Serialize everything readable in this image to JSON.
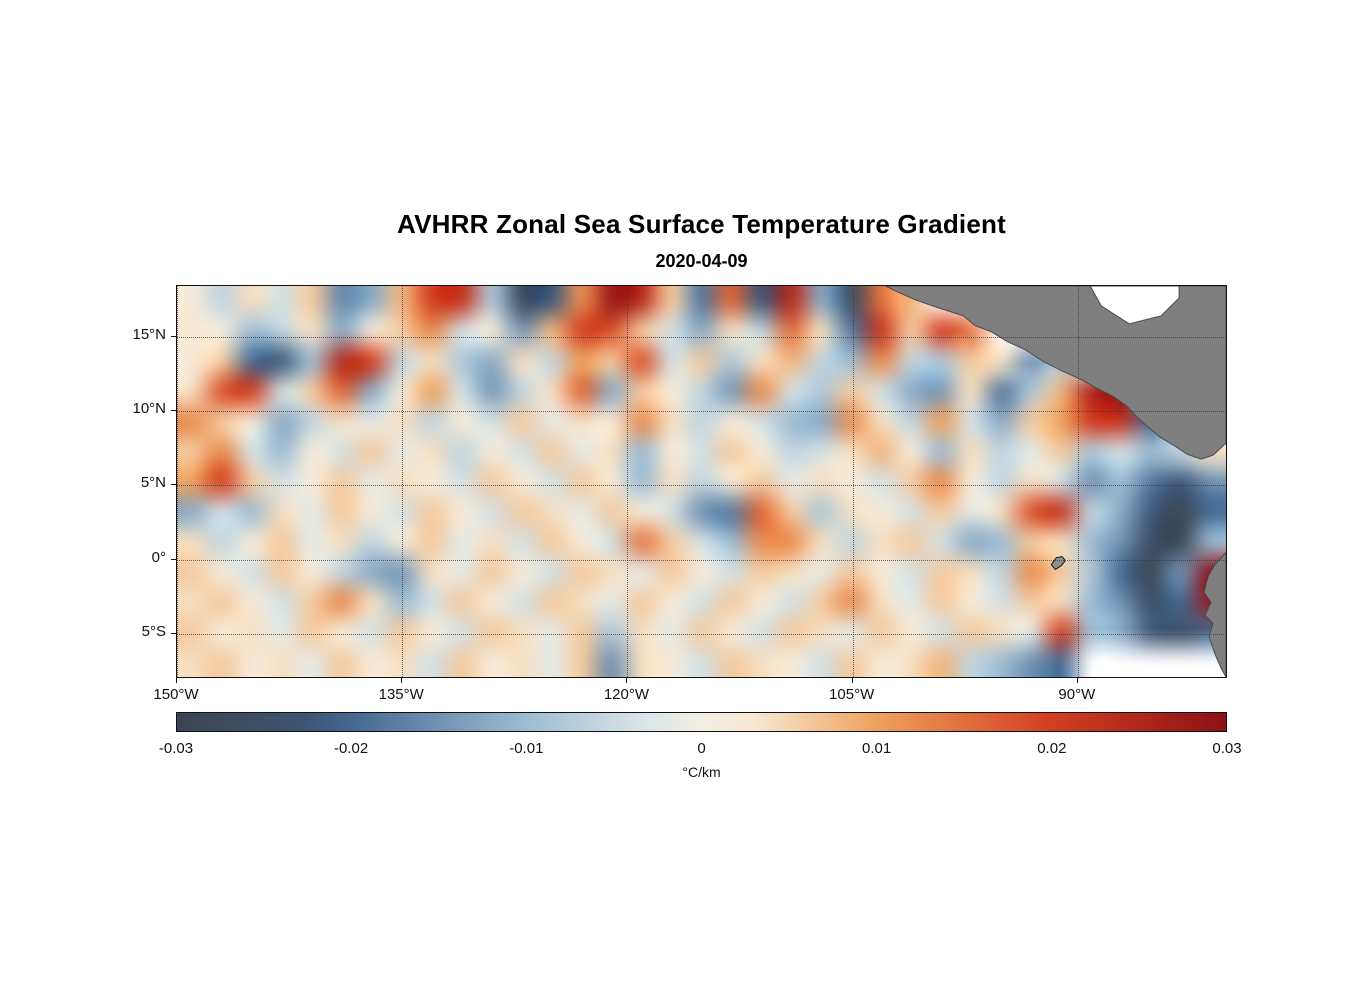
{
  "title": "AVHRR Zonal Sea Surface Temperature Gradient",
  "date": "2020-04-09",
  "axes": {
    "x_tick_labels": [
      "150°W",
      "135°W",
      "120°W",
      "105°W",
      "90°W"
    ],
    "x_tick_lons": [
      -150,
      -135,
      -120,
      -105,
      -90
    ],
    "y_tick_labels": [
      "15°N",
      "10°N",
      "5°N",
      "0°",
      "5°S"
    ],
    "y_tick_lats": [
      15,
      10,
      5,
      0,
      -5
    ],
    "lon_range": [
      -150,
      -80
    ],
    "lat_range": [
      -8,
      18.4
    ],
    "grid_style": "dotted"
  },
  "colorbar": {
    "min": -0.03,
    "max": 0.03,
    "tick_labels": [
      "-0.03",
      "-0.02",
      "-0.01",
      "0",
      "0.01",
      "0.02",
      "0.03"
    ],
    "tick_values": [
      -0.03,
      -0.02,
      -0.01,
      0,
      0.01,
      0.02,
      0.03
    ],
    "label": "°C/km",
    "stops": [
      {
        "t": 0.0,
        "color": "#3b4550"
      },
      {
        "t": 0.12,
        "color": "#3d5472"
      },
      {
        "t": 0.1667,
        "color": "#456890"
      },
      {
        "t": 0.3333,
        "color": "#9dbcd3"
      },
      {
        "t": 0.45,
        "color": "#dde7e8"
      },
      {
        "t": 0.5,
        "color": "#f3efe5"
      },
      {
        "t": 0.55,
        "color": "#f7e9d2"
      },
      {
        "t": 0.6667,
        "color": "#efa15c"
      },
      {
        "t": 0.8333,
        "color": "#d23e20"
      },
      {
        "t": 1.0,
        "color": "#8c1217"
      }
    ]
  },
  "chart_data": {
    "type": "heatmap",
    "title": "AVHRR Zonal Sea Surface Temperature Gradient",
    "subtitle": "2020-04-09",
    "units": "°C/km",
    "value_range": [
      -0.03,
      0.03
    ],
    "lon_centers_start": -149,
    "lon_step": 2,
    "n_cols": 35,
    "lat_centers_start": 17,
    "lat_step": -2,
    "n_rows": 13,
    "note": "approximate zonal SST gradient field; null = land / no data",
    "values": [
      [
        0.002,
        -0.006,
        0.004,
        -0.004,
        0.006,
        -0.016,
        -0.012,
        0.008,
        0.02,
        0.022,
        -0.008,
        -0.026,
        -0.022,
        0.012,
        0.028,
        0.024,
        0.006,
        -0.018,
        0.016,
        -0.022,
        0.024,
        -0.012,
        -0.025,
        0.015,
        0.008,
        null,
        null,
        null,
        null,
        null,
        null,
        null,
        null,
        null,
        null
      ],
      [
        0.003,
        0.001,
        -0.01,
        -0.006,
        0.004,
        -0.012,
        0.002,
        0.006,
        0.012,
        -0.004,
        0.002,
        -0.014,
        0.008,
        0.02,
        0.018,
        0.006,
        -0.004,
        -0.012,
        0.004,
        -0.006,
        0.015,
        0.004,
        -0.018,
        0.022,
        0.006,
        0.02,
        0.014,
        null,
        null,
        null,
        null,
        null,
        null,
        null,
        null
      ],
      [
        0.002,
        0.006,
        -0.02,
        -0.022,
        -0.01,
        0.024,
        0.02,
        -0.006,
        0.004,
        -0.008,
        -0.012,
        0.004,
        -0.006,
        0.01,
        0.006,
        0.018,
        -0.004,
        0.006,
        -0.008,
        0.004,
        0.008,
        -0.006,
        -0.01,
        0.012,
        -0.006,
        -0.008,
        0.006,
        0.004,
        -0.015,
        -0.008,
        null,
        null,
        null,
        null,
        null
      ],
      [
        0.004,
        0.018,
        0.02,
        -0.004,
        0.006,
        0.016,
        -0.012,
        0.002,
        0.01,
        -0.004,
        -0.014,
        -0.006,
        0.004,
        0.016,
        -0.012,
        0.006,
        0.002,
        -0.006,
        -0.014,
        0.012,
        -0.004,
        -0.008,
        0.006,
        -0.004,
        -0.012,
        -0.014,
        0.004,
        -0.018,
        -0.008,
        0.008,
        0.026,
        0.03,
        null,
        null,
        null
      ],
      [
        0.012,
        0.006,
        0.002,
        -0.012,
        -0.006,
        0.004,
        -0.002,
        0.004,
        -0.006,
        0.002,
        -0.004,
        0.006,
        -0.002,
        0.004,
        0.002,
        0.012,
        0.004,
        -0.006,
        0.002,
        -0.004,
        -0.01,
        -0.012,
        0.012,
        0.004,
        -0.006,
        0.01,
        -0.004,
        -0.012,
        0.006,
        0.01,
        0.02,
        0.022,
        -0.02,
        null,
        null
      ],
      [
        0.006,
        0.012,
        -0.004,
        -0.01,
        0.002,
        -0.004,
        0.006,
        -0.002,
        0.004,
        -0.006,
        0.002,
        -0.004,
        0.006,
        -0.002,
        0.004,
        -0.01,
        0.002,
        -0.004,
        0.006,
        0.002,
        -0.006,
        -0.004,
        0.004,
        0.008,
        0.002,
        -0.01,
        0.004,
        -0.006,
        -0.002,
        0.006,
        -0.008,
        -0.004,
        -0.01,
        -0.006,
        0.004
      ],
      [
        0.01,
        0.02,
        0.006,
        -0.004,
        0.002,
        0.006,
        -0.002,
        0.004,
        0.002,
        -0.004,
        0.006,
        0.002,
        -0.004,
        0.006,
        0.002,
        -0.01,
        0.004,
        -0.006,
        0.002,
        0.006,
        -0.002,
        0.004,
        0.002,
        -0.004,
        0.006,
        0.012,
        0.002,
        -0.006,
        0.004,
        -0.004,
        -0.015,
        -0.01,
        -0.018,
        -0.022,
        -0.015
      ],
      [
        -0.012,
        -0.004,
        -0.01,
        0.004,
        -0.002,
        0.006,
        0.002,
        -0.004,
        0.006,
        0.002,
        -0.004,
        0.006,
        0.004,
        -0.002,
        0.006,
        0.002,
        -0.004,
        -0.015,
        -0.018,
        0.016,
        0.006,
        -0.008,
        0.004,
        0.002,
        -0.004,
        0.006,
        -0.002,
        0.004,
        0.018,
        0.022,
        -0.006,
        -0.012,
        -0.022,
        -0.028,
        -0.02
      ],
      [
        0.004,
        -0.006,
        0.002,
        0.006,
        -0.002,
        0.004,
        -0.006,
        0.002,
        0.006,
        -0.002,
        0.004,
        -0.004,
        0.006,
        0.002,
        -0.004,
        0.014,
        0.006,
        -0.004,
        -0.01,
        0.012,
        0.012,
        0.004,
        -0.006,
        0.004,
        0.006,
        -0.004,
        -0.012,
        -0.01,
        0.006,
        0.004,
        -0.01,
        -0.015,
        -0.025,
        -0.028,
        -0.01
      ],
      [
        0.006,
        0.002,
        -0.004,
        0.006,
        0.002,
        -0.006,
        -0.012,
        -0.014,
        0.004,
        -0.002,
        0.006,
        0.002,
        -0.004,
        0.006,
        0.004,
        -0.002,
        0.006,
        0.002,
        -0.004,
        0.006,
        0.004,
        -0.002,
        0.006,
        0.002,
        -0.004,
        0.006,
        0.004,
        -0.006,
        0.012,
        0.006,
        -0.008,
        -0.02,
        -0.028,
        -0.015,
        0.03
      ],
      [
        0.004,
        0.006,
        0.002,
        -0.004,
        0.006,
        0.012,
        0.004,
        -0.01,
        -0.004,
        0.006,
        0.002,
        -0.004,
        0.006,
        0.004,
        -0.002,
        0.006,
        0.002,
        -0.004,
        0.006,
        0.002,
        -0.004,
        0.006,
        0.012,
        0.004,
        -0.002,
        0.006,
        0.002,
        -0.004,
        0.006,
        0.004,
        -0.01,
        -0.015,
        -0.025,
        -0.02,
        0.028
      ],
      [
        0.006,
        0.002,
        0.004,
        -0.002,
        0.006,
        0.002,
        -0.004,
        0.006,
        0.002,
        -0.004,
        0.006,
        0.004,
        -0.002,
        0.006,
        -0.008,
        0.004,
        -0.002,
        0.006,
        0.002,
        -0.004,
        0.006,
        0.004,
        -0.002,
        0.006,
        0.002,
        -0.004,
        0.006,
        0.004,
        -0.002,
        0.02,
        -0.01,
        -0.012,
        -0.022,
        -0.025,
        -0.02
      ],
      [
        0.004,
        0.006,
        0.002,
        0.004,
        -0.002,
        0.006,
        0.002,
        0.004,
        -0.004,
        0.006,
        0.002,
        0.004,
        -0.002,
        0.006,
        -0.015,
        0.004,
        0.002,
        -0.004,
        0.006,
        0.004,
        0.002,
        -0.004,
        0.006,
        0.002,
        0.004,
        0.008,
        -0.006,
        -0.01,
        -0.015,
        -0.02,
        null,
        null,
        null,
        null,
        null
      ]
    ]
  },
  "map": {
    "land_color": "#7f7f7f",
    "coast_color": "#4a4a4a",
    "no_data_color": "#ffffff",
    "land_polygons": {
      "central_america": [
        [
          710,
          0
        ],
        [
          722,
          6
        ],
        [
          740,
          14
        ],
        [
          760,
          21
        ],
        [
          788,
          30
        ],
        [
          800,
          40
        ],
        [
          816,
          46
        ],
        [
          832,
          56
        ],
        [
          850,
          64
        ],
        [
          868,
          76
        ],
        [
          888,
          86
        ],
        [
          906,
          94
        ],
        [
          922,
          103
        ],
        [
          938,
          111
        ],
        [
          952,
          121
        ],
        [
          962,
          132
        ],
        [
          972,
          141
        ],
        [
          985,
          152
        ],
        [
          1000,
          161
        ],
        [
          1012,
          169
        ],
        [
          1026,
          174
        ],
        [
          1038,
          170
        ],
        [
          1051,
          158
        ],
        [
          1051,
          0
        ]
      ],
      "caribbean_no_data": [
        [
          915,
          0
        ],
        [
          1004,
          0
        ],
        [
          1004,
          12
        ],
        [
          986,
          30
        ],
        [
          954,
          38
        ],
        [
          926,
          20
        ]
      ],
      "south_america": [
        [
          1051,
          268
        ],
        [
          1040,
          280
        ],
        [
          1033,
          292
        ],
        [
          1029,
          308
        ],
        [
          1036,
          318
        ],
        [
          1030,
          331
        ],
        [
          1038,
          339
        ],
        [
          1034,
          352
        ],
        [
          1040,
          370
        ],
        [
          1046,
          384
        ],
        [
          1051,
          393
        ]
      ],
      "galapagos": [
        [
          876,
          280
        ],
        [
          881,
          273
        ],
        [
          887,
          272
        ],
        [
          890,
          276
        ],
        [
          886,
          281
        ],
        [
          880,
          285
        ]
      ]
    }
  }
}
